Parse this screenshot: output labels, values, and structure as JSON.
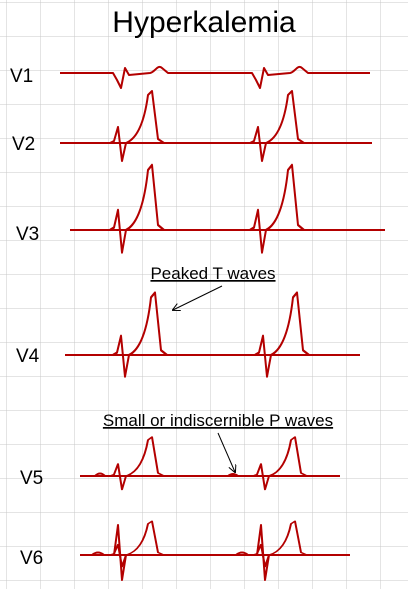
{
  "title": "Hyperkalemia",
  "leads": [
    "V1",
    "V2",
    "V3",
    "V4",
    "V5",
    "V6"
  ],
  "annotations": [
    "Peaked T waves",
    "Small or indiscernible P waves"
  ]
}
